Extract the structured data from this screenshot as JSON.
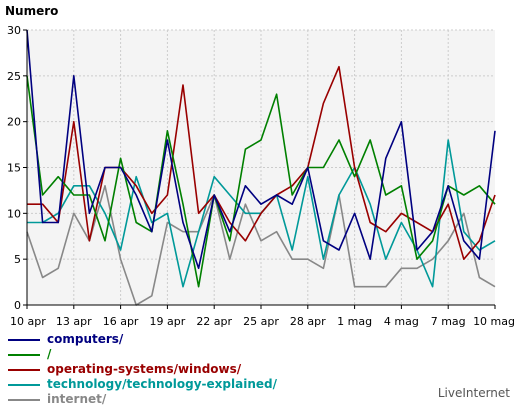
{
  "chart_data": {
    "type": "line",
    "ylabel": "Numero",
    "ylim": [
      0,
      30
    ],
    "yticks": [
      "0",
      "5",
      "10",
      "15",
      "20",
      "25",
      "30"
    ],
    "x": [
      "10 apr",
      "11 apr",
      "12 apr",
      "13 apr",
      "14 apr",
      "15 apr",
      "16 apr",
      "17 apr",
      "18 apr",
      "19 apr",
      "20 apr",
      "21 apr",
      "22 apr",
      "23 apr",
      "24 apr",
      "25 apr",
      "26 apr",
      "27 apr",
      "28 apr",
      "29 apr",
      "30 apr",
      "1 mag",
      "2 mag",
      "3 mag",
      "4 mag",
      "5 mag",
      "6 mag",
      "7 mag",
      "8 mag",
      "9 mag",
      "10 mag"
    ],
    "xticks": [
      "10 apr",
      "13 apr",
      "16 apr",
      "19 apr",
      "22 apr",
      "25 apr",
      "28 apr",
      "1 mag",
      "4 mag",
      "7 mag",
      "10 mag"
    ],
    "grid": true,
    "legend_position": "bottom-left",
    "series": [
      {
        "name": "computers/",
        "color": "#000080",
        "values": [
          30,
          9,
          9,
          25,
          10,
          15,
          15,
          12,
          8,
          18,
          9,
          4,
          12,
          8,
          13,
          11,
          12,
          11,
          15,
          7,
          6,
          10,
          5,
          16,
          20,
          6,
          8,
          13,
          7,
          5,
          19
        ]
      },
      {
        "name": "/",
        "color": "#008000",
        "values": [
          25,
          12,
          14,
          12,
          12,
          7,
          16,
          9,
          8,
          19,
          11,
          2,
          12,
          7,
          17,
          18,
          23,
          12,
          15,
          15,
          18,
          14,
          18,
          12,
          13,
          5,
          7,
          13,
          12,
          13,
          11
        ]
      },
      {
        "name": "operating-systems/windows/",
        "color": "#990000",
        "values": [
          11,
          11,
          9,
          20,
          7,
          15,
          15,
          13,
          10,
          12,
          24,
          10,
          12,
          9,
          7,
          10,
          12,
          13,
          15,
          22,
          26,
          15,
          9,
          8,
          10,
          9,
          8,
          11,
          5,
          7,
          12
        ]
      },
      {
        "name": "technology/technology-explained/",
        "color": "#009999",
        "values": [
          9,
          9,
          10,
          13,
          13,
          10,
          6,
          14,
          9,
          10,
          2,
          8,
          14,
          12,
          10,
          10,
          12,
          6,
          14,
          5,
          12,
          15,
          11,
          5,
          9,
          6,
          2,
          18,
          8,
          6,
          7
        ]
      },
      {
        "name": "internet/",
        "color": "#888888",
        "values": [
          8,
          3,
          4,
          10,
          7,
          13,
          5,
          0,
          1,
          9,
          8,
          8,
          12,
          5,
          11,
          7,
          8,
          5,
          5,
          4,
          12,
          2,
          2,
          2,
          4,
          4,
          5,
          7,
          10,
          3,
          2
        ]
      }
    ]
  },
  "credit": "LiveInternet"
}
